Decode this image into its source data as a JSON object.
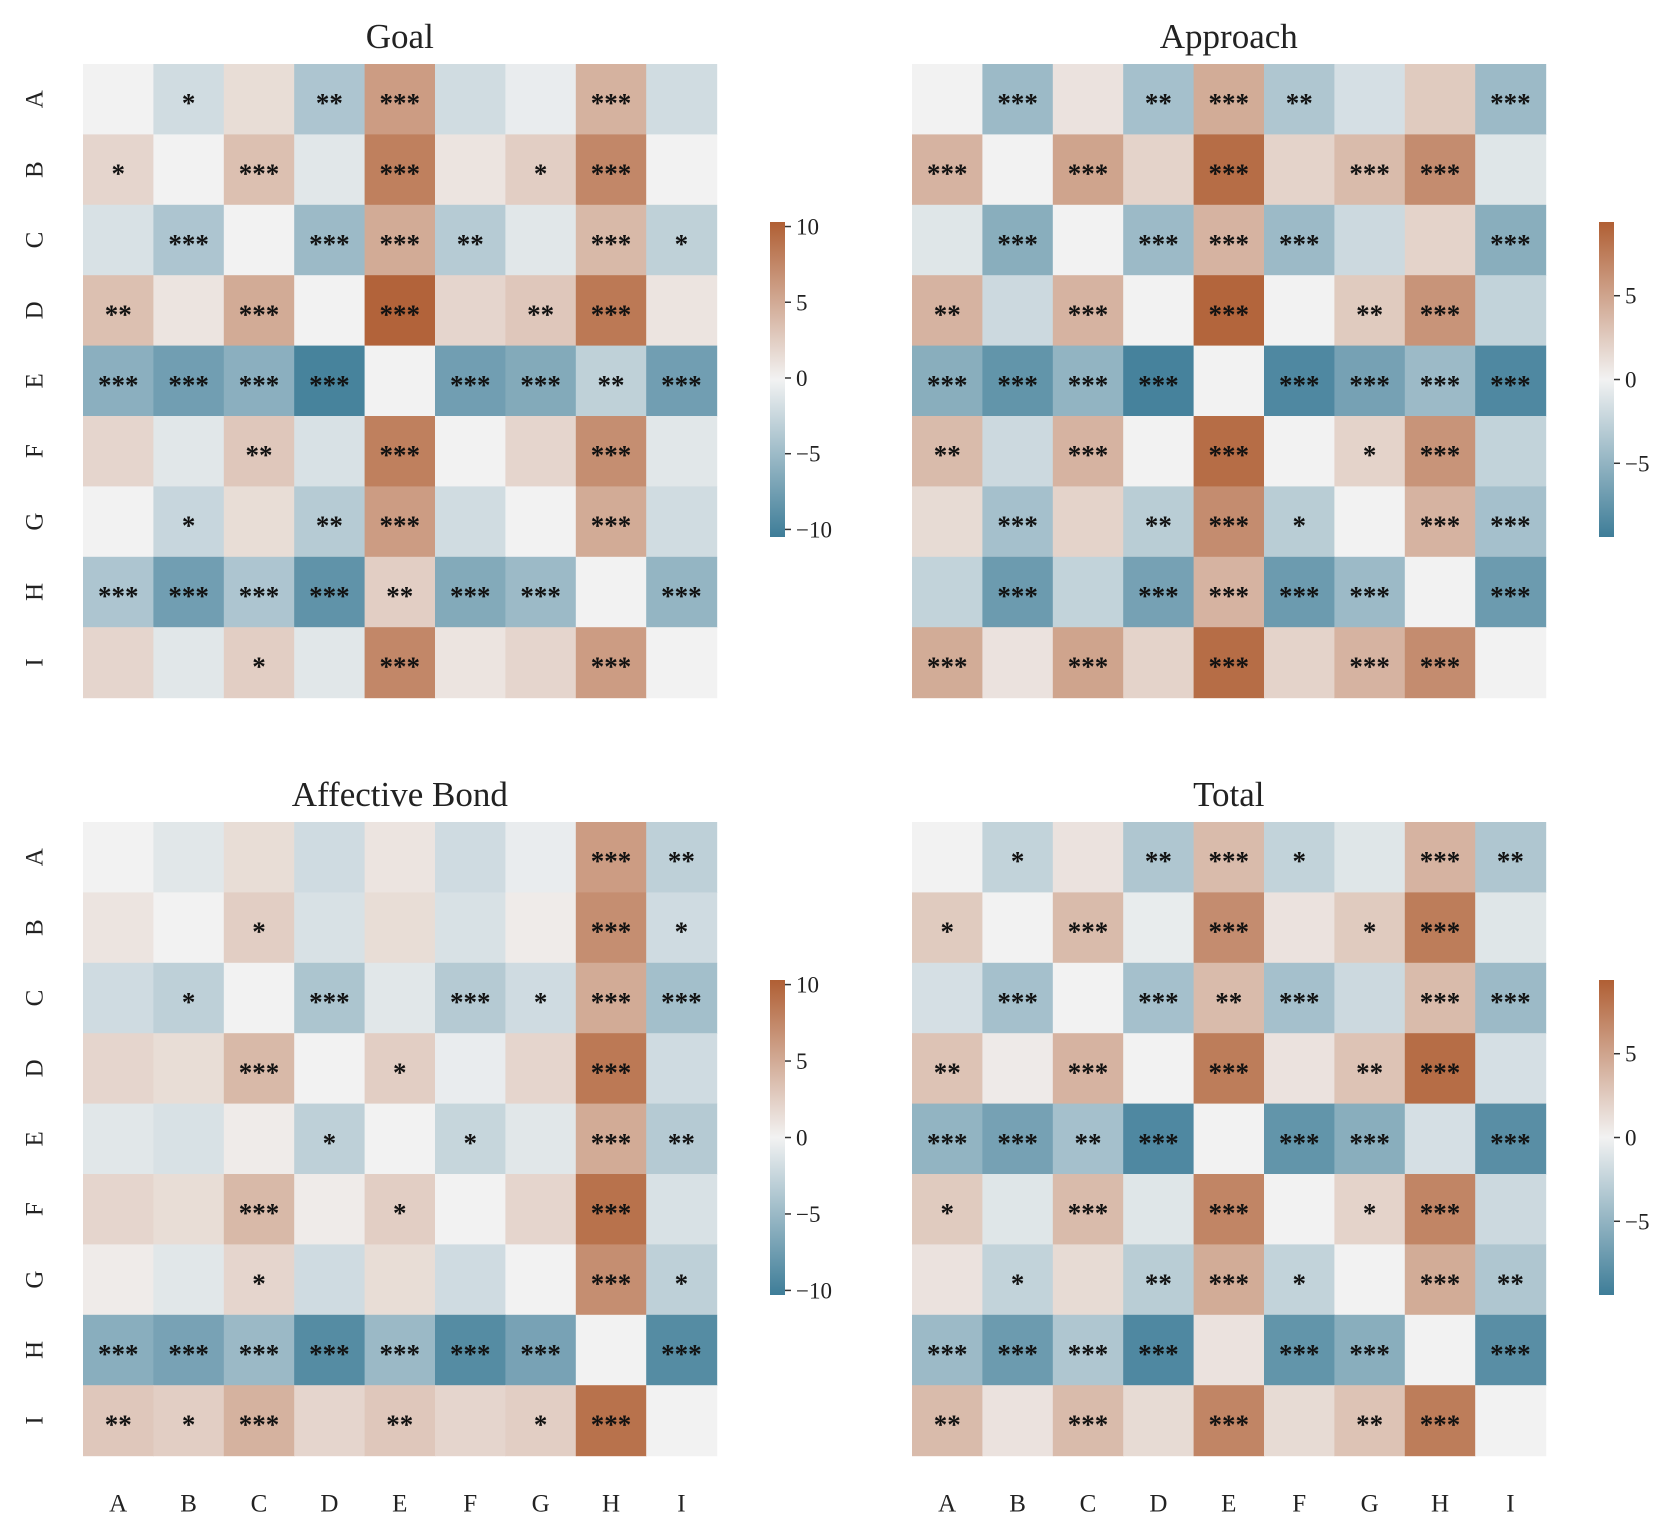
{
  "chart_data": [
    {
      "type": "heatmap",
      "title": "Goal",
      "rows": [
        "A",
        "B",
        "C",
        "D",
        "E",
        "F",
        "G",
        "H",
        "I"
      ],
      "cols": [
        "A",
        "B",
        "C",
        "D",
        "E",
        "F",
        "G",
        "H",
        "I"
      ],
      "colorbar": {
        "ticks": [
          10,
          5,
          0,
          -5,
          -10
        ],
        "tick_labels": [
          "10",
          "5",
          "0",
          "−5",
          "−10"
        ],
        "range": [
          -10.5,
          10.3
        ]
      },
      "values": [
        [
          0.0,
          -2.0,
          1.5,
          -4.0,
          6.0,
          -2.0,
          -0.5,
          4.5,
          -2.0
        ],
        [
          2.0,
          0.0,
          3.5,
          -1.0,
          8.0,
          1.0,
          2.5,
          7.5,
          0.0
        ],
        [
          -1.5,
          -4.0,
          0.0,
          -5.0,
          5.0,
          -3.5,
          -1.0,
          4.0,
          -3.0
        ],
        [
          3.5,
          1.0,
          5.0,
          0.0,
          10.0,
          2.0,
          3.0,
          8.5,
          1.0
        ],
        [
          -6.0,
          -7.5,
          -6.0,
          -10.0,
          0.0,
          -7.5,
          -6.5,
          -3.0,
          -7.5
        ],
        [
          2.0,
          -1.0,
          3.0,
          -1.5,
          8.0,
          0.0,
          2.0,
          7.0,
          -1.0
        ],
        [
          0.0,
          -2.5,
          1.5,
          -3.5,
          6.0,
          -2.0,
          0.0,
          5.0,
          -2.0
        ],
        [
          -4.0,
          -7.5,
          -4.0,
          -8.5,
          2.5,
          -6.5,
          -5.0,
          0.0,
          -5.5
        ],
        [
          2.0,
          -1.0,
          2.5,
          -1.0,
          7.5,
          1.0,
          2.0,
          6.0,
          0.0
        ]
      ],
      "annotations": [
        [
          "",
          "*",
          "",
          "**",
          "***",
          "",
          "",
          "***",
          ""
        ],
        [
          "*",
          "",
          "***",
          "",
          "***",
          "",
          "*",
          "***",
          ""
        ],
        [
          "",
          "***",
          "",
          "***",
          "***",
          "**",
          "",
          "***",
          "*"
        ],
        [
          "**",
          "",
          "***",
          "",
          "***",
          "",
          "**",
          "***",
          ""
        ],
        [
          "***",
          "***",
          "***",
          "***",
          "",
          "***",
          "***",
          "**",
          "***"
        ],
        [
          "",
          "",
          "**",
          "",
          "***",
          "",
          "",
          "***",
          ""
        ],
        [
          "",
          "*",
          "",
          "**",
          "***",
          "",
          "",
          "***",
          ""
        ],
        [
          "***",
          "***",
          "***",
          "***",
          "**",
          "***",
          "***",
          "",
          "***"
        ],
        [
          "",
          "",
          "*",
          "",
          "***",
          "",
          "",
          "***",
          ""
        ]
      ]
    },
    {
      "type": "heatmap",
      "title": "Approach",
      "rows": [
        "A",
        "B",
        "C",
        "D",
        "E",
        "F",
        "G",
        "H",
        "I"
      ],
      "cols": [
        "A",
        "B",
        "C",
        "D",
        "E",
        "F",
        "G",
        "H",
        "I"
      ],
      "colorbar": {
        "ticks": [
          5,
          0,
          -5
        ],
        "tick_labels": [
          "5",
          "0",
          "−5"
        ],
        "range": [
          -9.4,
          9.4
        ]
      },
      "values": [
        [
          0.0,
          -4.5,
          1.0,
          -4.0,
          4.5,
          -3.5,
          -1.5,
          2.5,
          -4.5
        ],
        [
          4.0,
          0.0,
          5.0,
          2.0,
          8.5,
          2.0,
          3.5,
          6.5,
          -1.0
        ],
        [
          -1.0,
          -5.5,
          0.0,
          -4.5,
          4.0,
          -4.5,
          -2.0,
          2.0,
          -5.5
        ],
        [
          4.0,
          -2.0,
          4.0,
          0.0,
          9.0,
          0.0,
          2.5,
          6.0,
          -2.5
        ],
        [
          -5.5,
          -7.5,
          -5.0,
          -9.0,
          0.0,
          -8.5,
          -6.5,
          -4.5,
          -8.5
        ],
        [
          3.5,
          -2.0,
          4.0,
          0.0,
          8.5,
          0.0,
          2.0,
          6.0,
          -2.5
        ],
        [
          1.5,
          -4.0,
          2.0,
          -3.0,
          6.5,
          -3.0,
          0.0,
          4.0,
          -4.0
        ],
        [
          -2.5,
          -7.0,
          -2.5,
          -6.5,
          4.0,
          -7.0,
          -4.5,
          0.0,
          -7.0
        ],
        [
          4.5,
          1.0,
          5.0,
          2.0,
          8.5,
          2.0,
          4.0,
          6.5,
          0.0
        ]
      ],
      "annotations": [
        [
          "",
          "***",
          "",
          "**",
          "***",
          "**",
          "",
          "",
          "***"
        ],
        [
          "***",
          "",
          "***",
          "",
          "***",
          "",
          "***",
          "***",
          ""
        ],
        [
          "",
          "***",
          "",
          "***",
          "***",
          "***",
          "",
          "",
          "***"
        ],
        [
          "**",
          "",
          "***",
          "",
          "***",
          "",
          "**",
          "***",
          ""
        ],
        [
          "***",
          "***",
          "***",
          "***",
          "",
          "***",
          "***",
          "***",
          "***"
        ],
        [
          "**",
          "",
          "***",
          "",
          "***",
          "",
          "*",
          "***",
          ""
        ],
        [
          "",
          "***",
          "",
          "**",
          "***",
          "*",
          "",
          "***",
          "***"
        ],
        [
          "",
          "***",
          "",
          "***",
          "***",
          "***",
          "***",
          "",
          "***"
        ],
        [
          "***",
          "",
          "***",
          "",
          "***",
          "",
          "***",
          "***",
          ""
        ]
      ]
    },
    {
      "type": "heatmap",
      "title": "Affective Bond",
      "rows": [
        "A",
        "B",
        "C",
        "D",
        "E",
        "F",
        "G",
        "H",
        "I"
      ],
      "cols": [
        "A",
        "B",
        "C",
        "D",
        "E",
        "F",
        "G",
        "H",
        "I"
      ],
      "colorbar": {
        "ticks": [
          10,
          5,
          0,
          -5,
          -10
        ],
        "tick_labels": [
          "10",
          "5",
          "0",
          "−5",
          "−10"
        ],
        "range": [
          -10.3,
          10.3
        ]
      },
      "values": [
        [
          0.0,
          -1.0,
          1.5,
          -2.0,
          1.0,
          -2.0,
          -0.5,
          6.0,
          -3.0
        ],
        [
          1.0,
          0.0,
          2.5,
          -1.5,
          1.5,
          -1.5,
          0.5,
          7.0,
          -2.0
        ],
        [
          -2.0,
          -3.0,
          0.0,
          -4.0,
          -1.0,
          -3.5,
          -2.0,
          5.0,
          -4.5
        ],
        [
          2.0,
          1.5,
          4.0,
          0.0,
          2.5,
          -0.5,
          2.0,
          8.5,
          -2.0
        ],
        [
          -1.0,
          -1.5,
          0.5,
          -3.0,
          0.0,
          -2.5,
          -1.0,
          5.0,
          -3.5
        ],
        [
          2.0,
          1.5,
          4.0,
          0.5,
          2.5,
          0.0,
          2.0,
          9.0,
          -1.5
        ],
        [
          0.5,
          -1.0,
          2.0,
          -2.0,
          1.5,
          -2.0,
          0.0,
          7.0,
          -3.0
        ],
        [
          -6.0,
          -7.0,
          -5.0,
          -9.0,
          -5.0,
          -9.0,
          -7.0,
          0.0,
          -9.0
        ],
        [
          3.0,
          2.5,
          4.5,
          2.0,
          3.0,
          2.0,
          2.5,
          9.0,
          0.0
        ]
      ],
      "annotations": [
        [
          "",
          "",
          "",
          "",
          "",
          "",
          "",
          "***",
          "**"
        ],
        [
          "",
          "",
          "*",
          "",
          "",
          "",
          "",
          "***",
          "*"
        ],
        [
          "",
          "*",
          "",
          "***",
          "",
          "***",
          "*",
          "***",
          "***"
        ],
        [
          "",
          "",
          "***",
          "",
          "*",
          "",
          "",
          "***",
          ""
        ],
        [
          "",
          "",
          "",
          "*",
          "",
          "*",
          "",
          "***",
          "**"
        ],
        [
          "",
          "",
          "***",
          "",
          "*",
          "",
          "",
          "***",
          ""
        ],
        [
          "",
          "",
          "*",
          "",
          "",
          "",
          "",
          "***",
          "*"
        ],
        [
          "***",
          "***",
          "***",
          "***",
          "***",
          "***",
          "***",
          "",
          "***"
        ],
        [
          "**",
          "*",
          "***",
          "",
          "**",
          "",
          "*",
          "***",
          ""
        ]
      ]
    },
    {
      "type": "heatmap",
      "title": "Total",
      "rows": [
        "A",
        "B",
        "C",
        "D",
        "E",
        "F",
        "G",
        "H",
        "I"
      ],
      "cols": [
        "A",
        "B",
        "C",
        "D",
        "E",
        "F",
        "G",
        "H",
        "I"
      ],
      "colorbar": {
        "ticks": [
          5,
          0,
          -5
        ],
        "tick_labels": [
          "5",
          "0",
          "−5"
        ],
        "range": [
          -9.4,
          9.4
        ]
      },
      "values": [
        [
          0.0,
          -2.5,
          1.0,
          -3.5,
          3.5,
          -2.5,
          -1.0,
          4.0,
          -3.5
        ],
        [
          2.5,
          0.0,
          3.5,
          -0.5,
          6.5,
          1.0,
          2.5,
          7.5,
          -1.0
        ],
        [
          -1.5,
          -4.0,
          0.0,
          -4.0,
          3.5,
          -4.0,
          -2.0,
          3.5,
          -4.5
        ],
        [
          3.0,
          0.5,
          4.0,
          0.0,
          7.5,
          1.0,
          3.0,
          8.5,
          -1.5
        ],
        [
          -5.0,
          -6.5,
          -4.0,
          -8.5,
          0.0,
          -7.5,
          -5.5,
          -1.5,
          -8.0
        ],
        [
          2.5,
          -1.0,
          3.5,
          -1.0,
          7.0,
          0.0,
          2.0,
          7.0,
          -2.0
        ],
        [
          1.0,
          -2.5,
          1.5,
          -3.0,
          4.5,
          -2.5,
          0.0,
          4.5,
          -3.5
        ],
        [
          -4.5,
          -7.0,
          -3.5,
          -8.5,
          1.0,
          -7.5,
          -5.5,
          0.0,
          -8.0
        ],
        [
          3.5,
          1.0,
          3.5,
          1.5,
          7.0,
          1.5,
          3.0,
          7.5,
          0.0
        ]
      ],
      "annotations": [
        [
          "",
          "*",
          "",
          "**",
          "***",
          "*",
          "",
          "***",
          "**"
        ],
        [
          "*",
          "",
          "***",
          "",
          "***",
          "",
          "*",
          "***",
          ""
        ],
        [
          "",
          "***",
          "",
          "***",
          "**",
          "***",
          "",
          "***",
          "***"
        ],
        [
          "**",
          "",
          "***",
          "",
          "***",
          "",
          "**",
          "***",
          ""
        ],
        [
          "***",
          "***",
          "**",
          "***",
          "",
          "***",
          "***",
          "",
          "***"
        ],
        [
          "*",
          "",
          "***",
          "",
          "***",
          "",
          "*",
          "***",
          ""
        ],
        [
          "",
          "*",
          "",
          "**",
          "***",
          "*",
          "",
          "***",
          "**"
        ],
        [
          "***",
          "***",
          "***",
          "***",
          "",
          "***",
          "***",
          "",
          "***"
        ],
        [
          "**",
          "",
          "***",
          "",
          "***",
          "",
          "**",
          "***",
          ""
        ]
      ]
    }
  ]
}
